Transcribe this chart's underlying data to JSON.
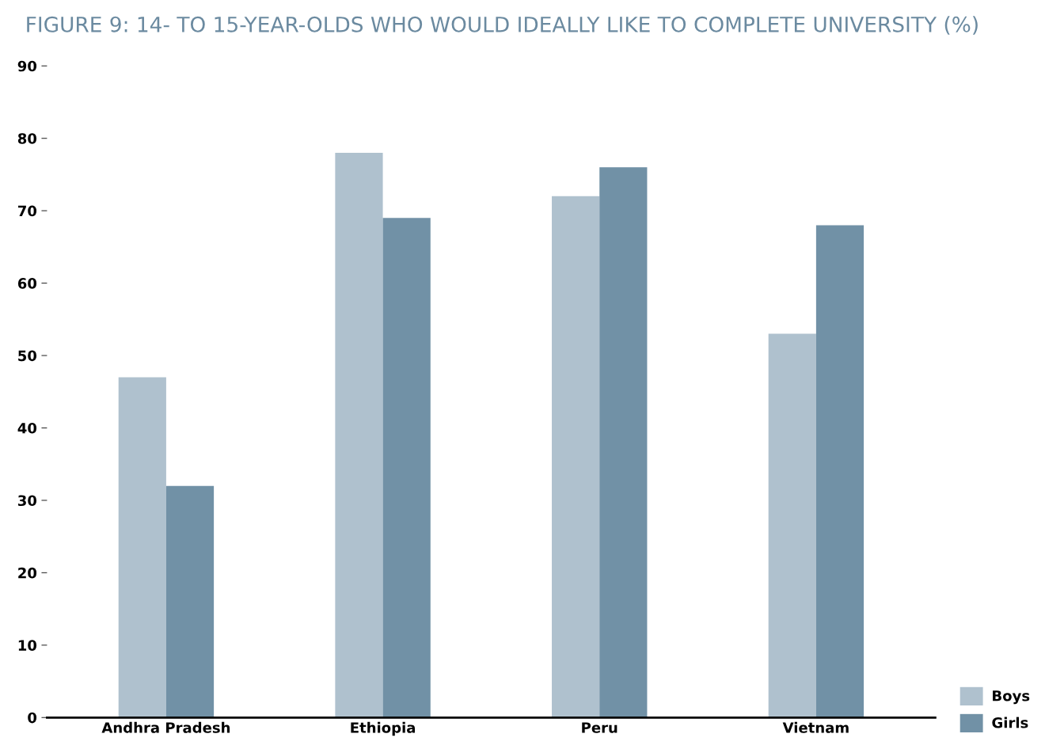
{
  "chart_data": {
    "type": "bar",
    "title": "FIGURE 9: 14- TO 15-YEAR-OLDS WHO WOULD IDEALLY LIKE TO COMPLETE UNIVERSITY (%)",
    "categories": [
      "Andhra Pradesh",
      "Ethiopia",
      "Peru",
      "Vietnam"
    ],
    "series": [
      {
        "name": "Boys",
        "color": "#afc1ce",
        "values": [
          47,
          78,
          72,
          53
        ]
      },
      {
        "name": "Girls",
        "color": "#7191a6",
        "values": [
          32,
          69,
          76,
          68
        ]
      }
    ],
    "ylim": [
      0,
      90
    ],
    "yticks": [
      0,
      10,
      20,
      30,
      40,
      50,
      60,
      70,
      80,
      90
    ],
    "grid": false,
    "legend": "bottom right"
  }
}
